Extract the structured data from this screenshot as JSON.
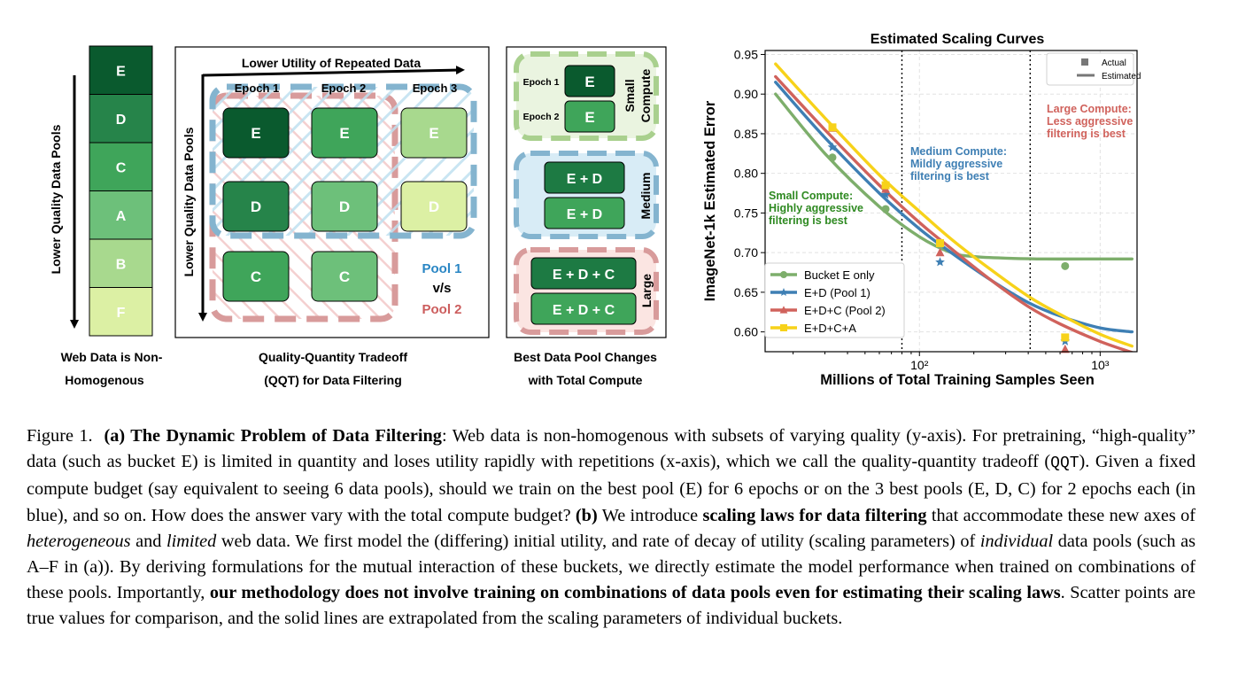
{
  "panel_a": {
    "axis_label": "Lower Quality Data Pools",
    "pools": [
      "E",
      "D",
      "C",
      "A",
      "B",
      "F"
    ],
    "pool_colors": [
      "#0a5a2e",
      "#26844a",
      "#3fa55a",
      "#6dc07a",
      "#a8d98e",
      "#dcf0a4"
    ],
    "caption_line1": "Web Data is Non-",
    "caption_line2": "Homogenous"
  },
  "panel_b": {
    "x_axis_label": "Lower Utility of Repeated Data",
    "y_axis_label": "Lower Quality Data Pools",
    "epochs": [
      "Epoch 1",
      "Epoch 2",
      "Epoch 3"
    ],
    "grid": [
      [
        "E",
        "E",
        "E"
      ],
      [
        "D",
        "D",
        "D"
      ],
      [
        "C",
        "C",
        ""
      ]
    ],
    "pool1_label": "Pool 1",
    "vs_label": "v/s",
    "pool2_label": "Pool 2",
    "caption_line1": "Quality-Quantity Tradeoff",
    "caption_line2": "(QQT) for Data Filtering"
  },
  "panel_c": {
    "small": {
      "label": "Small Compute",
      "label_line1": "Small",
      "label_line2": "Compute",
      "rows": [
        {
          "epoch": "Epoch 1",
          "cell": "E"
        },
        {
          "epoch": "Epoch 2",
          "cell": "E"
        }
      ]
    },
    "medium": {
      "label": "Medium",
      "rows": [
        "E + D",
        "E + D"
      ]
    },
    "large": {
      "label": "Large",
      "rows": [
        "E + D + C",
        "E + D + C"
      ]
    },
    "caption_line1": "Best Data Pool Changes",
    "caption_line2": "with Total Compute"
  },
  "chart_data": {
    "type": "line",
    "title": "Estimated Scaling Curves",
    "xlabel": "Millions of Total Training Samples Seen",
    "ylabel": "ImageNet-1k Estimated Error",
    "x_scale": "log",
    "xlim": [
      14,
      1600
    ],
    "ylim": [
      0.575,
      0.955
    ],
    "yticks": [
      0.6,
      0.65,
      0.7,
      0.75,
      0.8,
      0.85,
      0.9,
      0.95
    ],
    "ytick_labels": [
      "0.60",
      "0.65",
      "0.70",
      "0.75",
      "0.80",
      "0.85",
      "0.90",
      "0.95"
    ],
    "xticks": [
      100,
      1000
    ],
    "xtick_labels": [
      "10²",
      "10³"
    ],
    "vlines": [
      80,
      410
    ],
    "grid": true,
    "legend_top": {
      "items": [
        "Actual",
        "Estimated"
      ],
      "position": "top-right"
    },
    "legend_position": "lower-left",
    "series": [
      {
        "name": "Bucket E only",
        "color": "#7dae6b",
        "marker": "circle",
        "x": [
          16,
          30,
          60,
          100,
          150,
          200,
          300,
          500,
          1000,
          1500
        ],
        "y": [
          0.9,
          0.825,
          0.758,
          0.72,
          0.7,
          0.695,
          0.693,
          0.692,
          0.692,
          0.692
        ],
        "points": {
          "x": [
            33,
            65,
            130,
            640
          ],
          "y": [
            0.82,
            0.755,
            0.71,
            0.683
          ]
        }
      },
      {
        "name": "E+D (Pool 1)",
        "color": "#3e7fb4",
        "marker": "star",
        "x": [
          16,
          30,
          60,
          100,
          150,
          250,
          400,
          600,
          1000,
          1500
        ],
        "y": [
          0.915,
          0.845,
          0.775,
          0.73,
          0.7,
          0.665,
          0.637,
          0.62,
          0.605,
          0.6
        ],
        "points": {
          "x": [
            33,
            65,
            130,
            640
          ],
          "y": [
            0.833,
            0.773,
            0.688,
            0.588
          ]
        }
      },
      {
        "name": "E+D+C (Pool 2)",
        "color": "#d0625c",
        "marker": "triangle",
        "x": [
          16,
          30,
          60,
          100,
          150,
          250,
          400,
          600,
          1000,
          1500
        ],
        "y": [
          0.922,
          0.855,
          0.785,
          0.738,
          0.705,
          0.665,
          0.632,
          0.61,
          0.588,
          0.574
        ],
        "points": {
          "x": [
            33,
            65,
            130,
            640
          ],
          "y": [
            0.857,
            0.78,
            0.7,
            0.578
          ]
        }
      },
      {
        "name": "E+D+C+A",
        "color": "#f7d21a",
        "marker": "square",
        "x": [
          16,
          30,
          60,
          100,
          150,
          250,
          400,
          600,
          1000,
          1500
        ],
        "y": [
          0.938,
          0.87,
          0.798,
          0.752,
          0.717,
          0.678,
          0.645,
          0.622,
          0.597,
          0.582
        ],
        "points": {
          "x": [
            33,
            65,
            130,
            640
          ],
          "y": [
            0.858,
            0.785,
            0.712,
            0.593
          ]
        }
      }
    ],
    "annotations": [
      {
        "lines": [
          "Small Compute:",
          "Highly aggressive",
          "filtering is best"
        ],
        "color": "#2f8a22"
      },
      {
        "lines": [
          "Medium Compute:",
          "Mildly aggressive",
          "filtering is best"
        ],
        "color": "#3e7fb4"
      },
      {
        "lines": [
          "Large Compute:",
          "Less aggressive",
          "filtering is best"
        ],
        "color": "#d0625c"
      }
    ]
  },
  "caption": {
    "label": "Figure 1.",
    "bold_a": "(a) The Dynamic Problem of Data Filtering",
    "t1": ": Web data is non-homogenous with subsets of varying quality (y-axis). For pretraining, “high-quality” data (such as bucket E) is limited in quantity and loses utility rapidly with repetitions (x-axis), which we call the quality-quantity tradeoff (",
    "mono": "QQT",
    "t2": "). Given a fixed compute budget (say equivalent to seeing 6 data pools), should we train on the best pool (E) for 6 epochs or on the 3 best pools (E, D, C) for 2 epochs each (in blue), and so on. How does the answer vary with the total compute budget? ",
    "bold_b": "(b)",
    "t3": " We introduce ",
    "bold_c": "scaling laws for data filtering",
    "t4": " that accommodate these new axes of ",
    "it1": "heterogeneous",
    "t5": " and ",
    "it2": "limited",
    "t6": " web data. We first model the (differing) initial utility, and rate of decay of utility (scaling parameters) of ",
    "it3": "individual",
    "t7": " data pools (such as A–F in (a)). By deriving formulations for the mutual interaction of these buckets, we directly estimate the model performance when trained on combinations of these pools. Importantly, ",
    "bold_d": "our methodology does not involve training on combinations of data pools even for estimating their scaling laws",
    "t8": ". Scatter points are true values for comparison, and the solid lines are extrapolated from the scaling parameters of individual buckets."
  }
}
